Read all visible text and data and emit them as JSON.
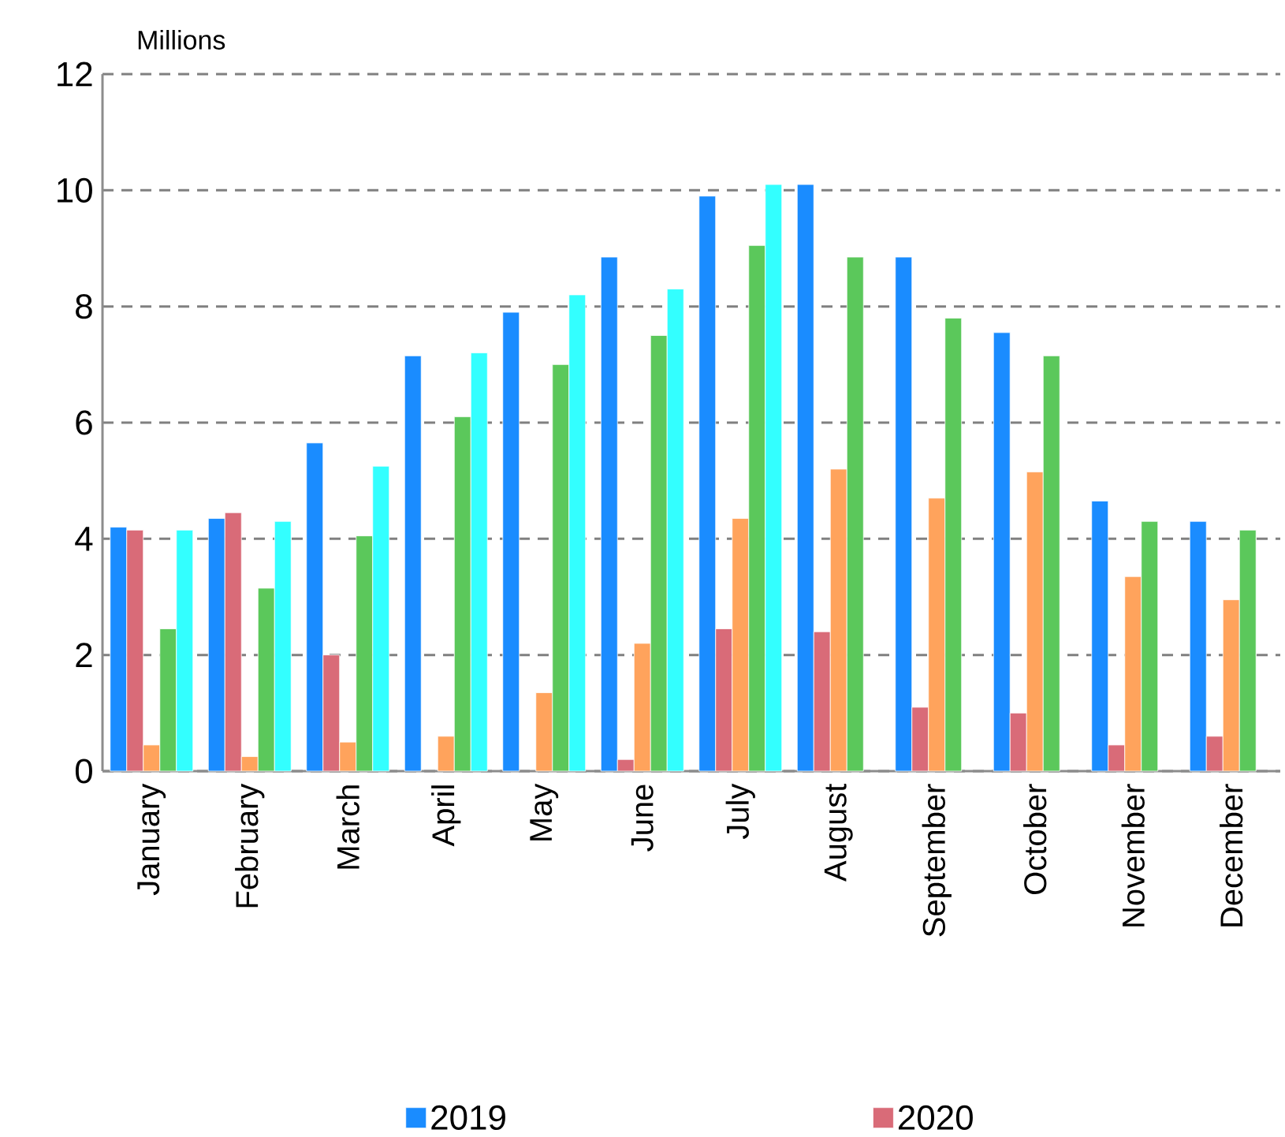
{
  "chart_data": {
    "type": "bar",
    "ylabel": "Millions",
    "categories": [
      "January",
      "February",
      "March",
      "April",
      "May",
      "June",
      "July",
      "August",
      "September",
      "October",
      "November",
      "December"
    ],
    "series": [
      {
        "name": "2019",
        "color": "#1a8cff",
        "values": [
          4.2,
          4.35,
          5.65,
          7.15,
          7.9,
          8.85,
          9.9,
          10.1,
          8.85,
          7.55,
          4.65,
          4.3
        ]
      },
      {
        "name": "2020",
        "color": "#d96b78",
        "values": [
          4.15,
          4.45,
          2.0,
          null,
          null,
          0.2,
          2.45,
          2.4,
          1.1,
          1.0,
          0.45,
          0.6
        ]
      },
      {
        "color": "#ffa35c",
        "values": [
          0.45,
          0.25,
          0.5,
          0.6,
          1.35,
          2.2,
          4.35,
          5.2,
          4.7,
          5.15,
          3.35,
          2.95
        ]
      },
      {
        "color": "#5bc85b",
        "values": [
          2.45,
          3.15,
          4.05,
          6.1,
          7.0,
          7.5,
          9.05,
          8.85,
          7.8,
          7.15,
          4.3,
          4.15
        ]
      },
      {
        "color": "#33ffff",
        "values": [
          4.15,
          4.3,
          5.25,
          7.2,
          8.2,
          8.3,
          10.1,
          null,
          null,
          null,
          null,
          null
        ]
      }
    ],
    "ylim": [
      0,
      12
    ],
    "yticks": [
      0,
      2,
      4,
      6,
      8,
      10,
      12
    ],
    "grid": "y",
    "legend": "bottom"
  }
}
